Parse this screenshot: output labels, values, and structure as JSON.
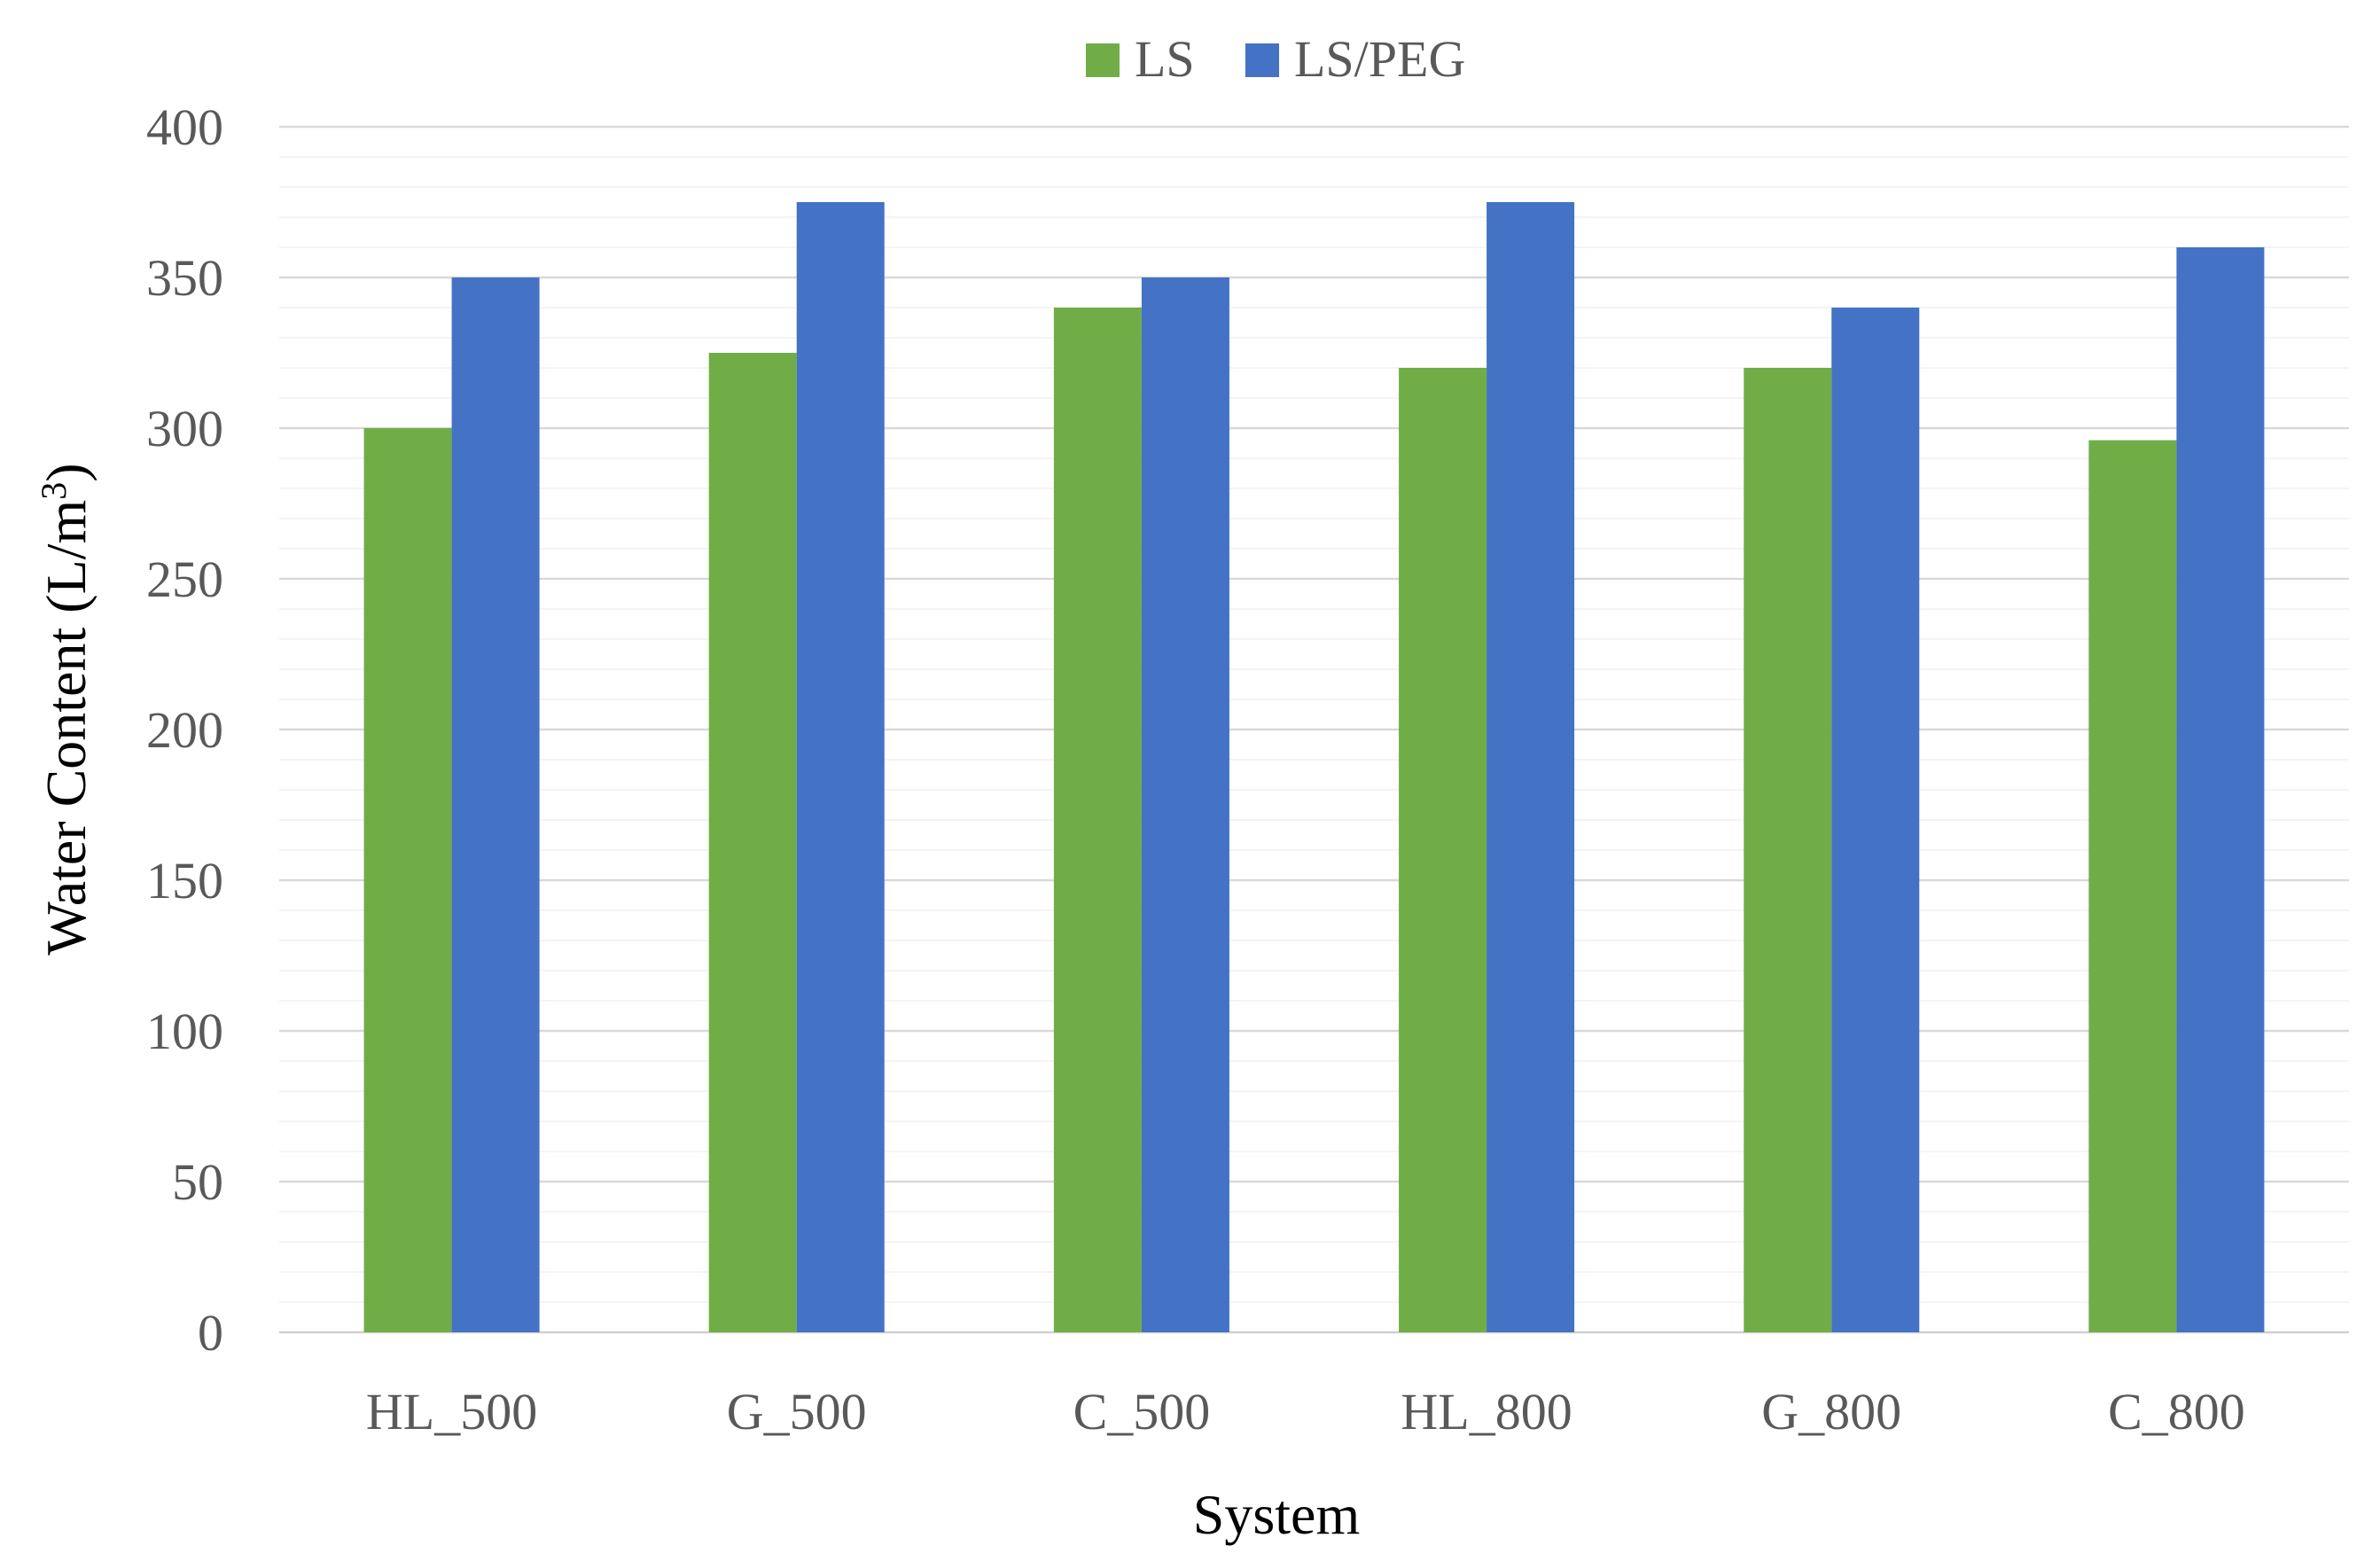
{
  "chart_data": {
    "type": "bar",
    "title": "",
    "xlabel": "System",
    "ylabel_main": "Water Content (L/m",
    "ylabel_sup": "3",
    "ylabel_close": ")",
    "categories": [
      "HL_500",
      "G_500",
      "C_500",
      "HL_800",
      "G_800",
      "C_800"
    ],
    "series": [
      {
        "name": "LS",
        "color": "#70AD47",
        "values": [
          300,
          325,
          340,
          320,
          320,
          296
        ]
      },
      {
        "name": "LS/PEG",
        "color": "#4472C4",
        "values": [
          350,
          375,
          350,
          375,
          340,
          360
        ]
      }
    ],
    "ylim": [
      0,
      400
    ],
    "yticks": [
      0,
      50,
      100,
      150,
      200,
      250,
      300,
      350,
      400
    ],
    "minor_tick_step": 10,
    "grid": true,
    "legend_position": "top-center"
  }
}
